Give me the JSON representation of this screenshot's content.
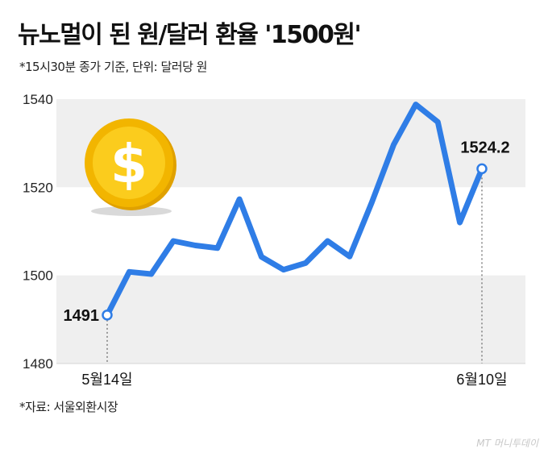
{
  "header": {
    "title": "뉴노멀이 된 원/달러 환율 '1500원'",
    "subtitle": "*15시30분 종가 기준, 단위: 달러당 원"
  },
  "footer": {
    "source": "*자료: 서울외환시장",
    "watermark": "MT 머니투데이"
  },
  "colors": {
    "line": "#2f7de6",
    "band": "#efefef",
    "coin_outer": "#f2b500",
    "coin_inner": "#fbcc1d",
    "dollar": "#ffffff"
  },
  "icons": [
    "dollar-coin-icon"
  ],
  "chart_data": {
    "type": "line",
    "title": "뉴노멀이 된 원/달러 환율 '1500원'",
    "subtitle": "*15시30분 종가 기준, 단위: 달러당 원",
    "ylim": [
      1480,
      1540
    ],
    "yticks": [
      1480,
      1500,
      1520,
      1540
    ],
    "alternating_bands": true,
    "x_labels": [
      {
        "index": 0,
        "text": "5월14일"
      },
      {
        "index": 18,
        "text": "6월10일"
      }
    ],
    "series": [
      {
        "values": [
          1491.0,
          1500.8,
          1500.3,
          1507.8,
          1506.8,
          1506.2,
          1517.3,
          1504.2,
          1501.3,
          1502.8,
          1507.8,
          1504.3,
          1516.5,
          1529.7,
          1538.8,
          1534.8,
          1512.0,
          1524.2
        ]
      }
    ],
    "annotations": [
      {
        "index": 0,
        "text": "1491"
      },
      {
        "index": 17,
        "text": "1524.2"
      }
    ]
  }
}
